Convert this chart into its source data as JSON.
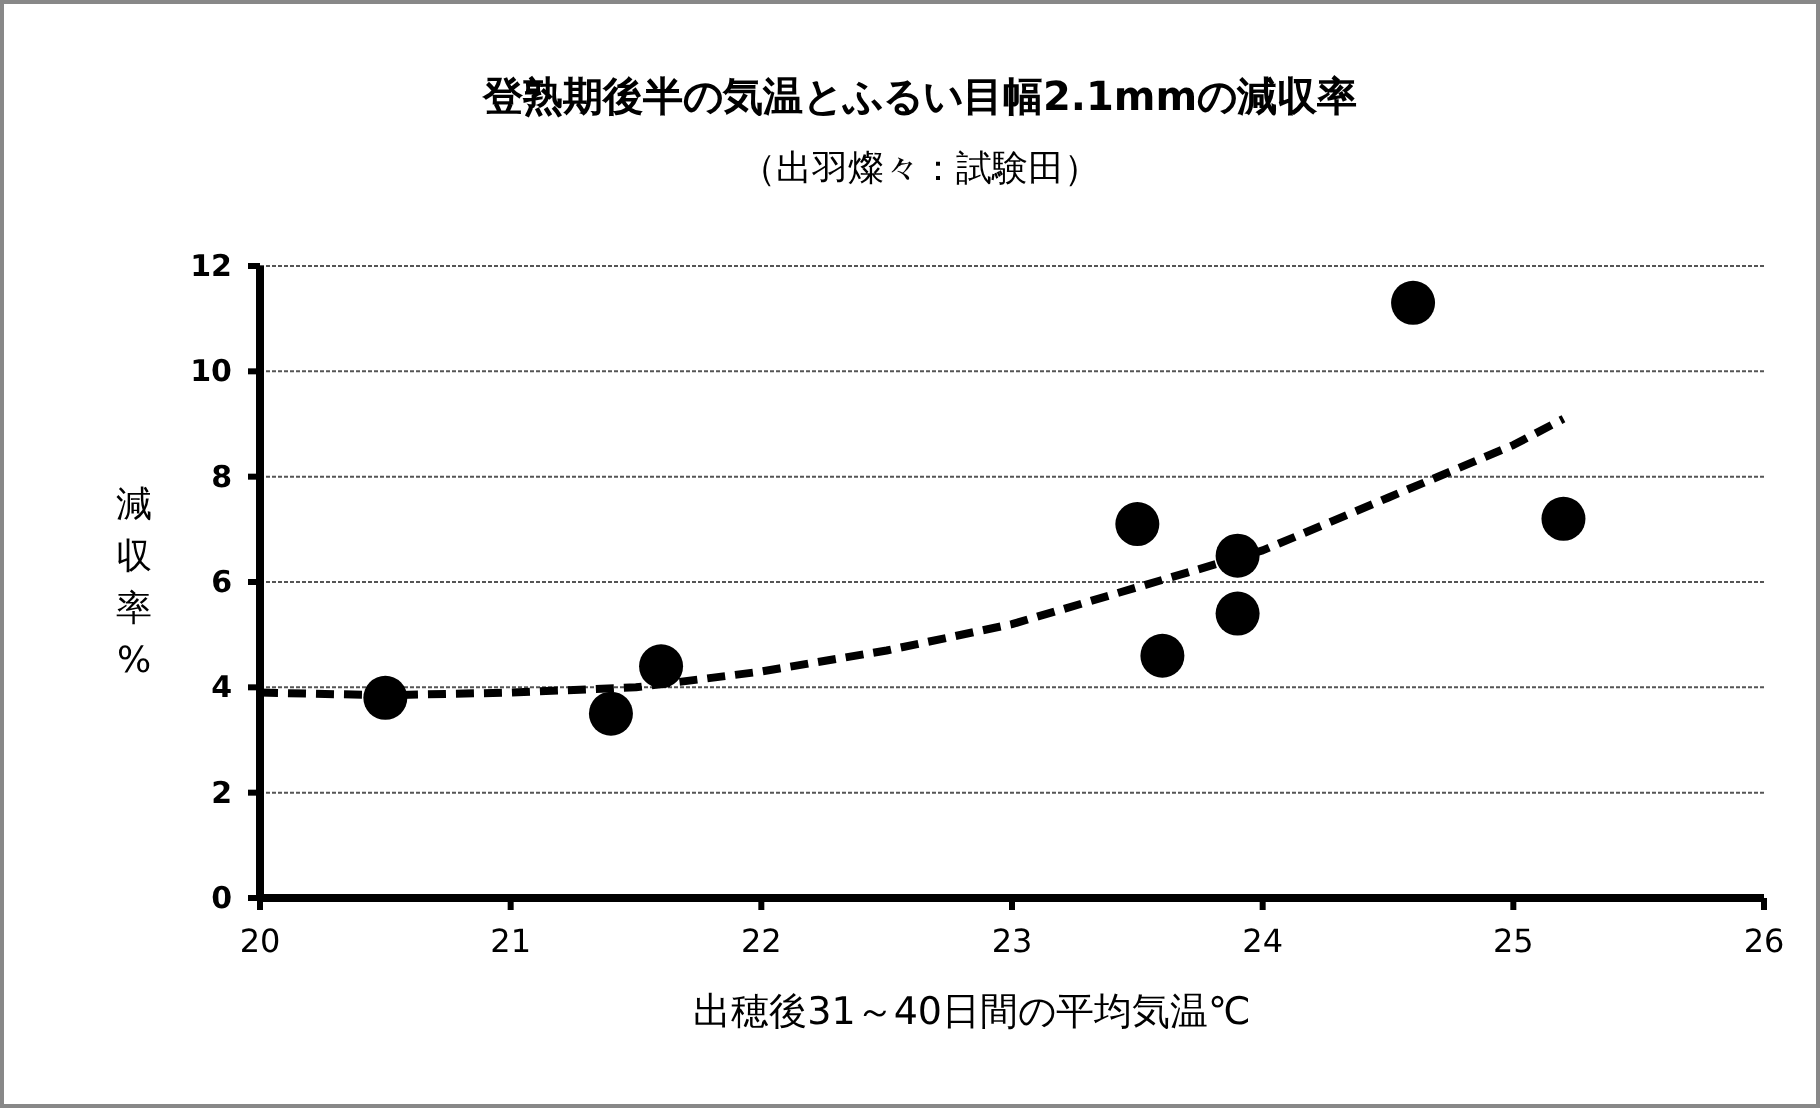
{
  "chart_data": {
    "type": "scatter",
    "title": "登熟期後半の気温とふるい目幅2.1mmの減収率",
    "subtitle": "（出羽燦々：試験田）",
    "xlabel": "出穂後31～40日間の平均気温℃",
    "ylabel": "減収率%",
    "series": [
      {
        "color": "#000000",
        "marker": "circle",
        "x": [
          20.5,
          21.4,
          21.6,
          23.5,
          23.6,
          23.9,
          23.9,
          24.6,
          25.2
        ],
        "values": [
          3.8,
          3.5,
          4.4,
          7.1,
          4.6,
          6.5,
          5.4,
          11.3,
          7.2
        ]
      },
      {
        "type": "line",
        "color": "#000000",
        "line_style": "dashed",
        "x": [
          20,
          20.5,
          21,
          21.5,
          22,
          22.5,
          23,
          23.5,
          24,
          24.5,
          25,
          25.2
        ],
        "values": [
          3.9,
          3.85,
          3.9,
          4.0,
          4.3,
          4.7,
          5.2,
          5.9,
          6.6,
          7.6,
          8.6,
          9.1
        ]
      }
    ],
    "xlim": [
      20,
      26
    ],
    "ylim": [
      0,
      12
    ],
    "xticks": [
      20,
      21,
      22,
      23,
      24,
      25,
      26
    ],
    "yticks": [
      0,
      2,
      4,
      6,
      8,
      10,
      12
    ],
    "grid": "y"
  }
}
